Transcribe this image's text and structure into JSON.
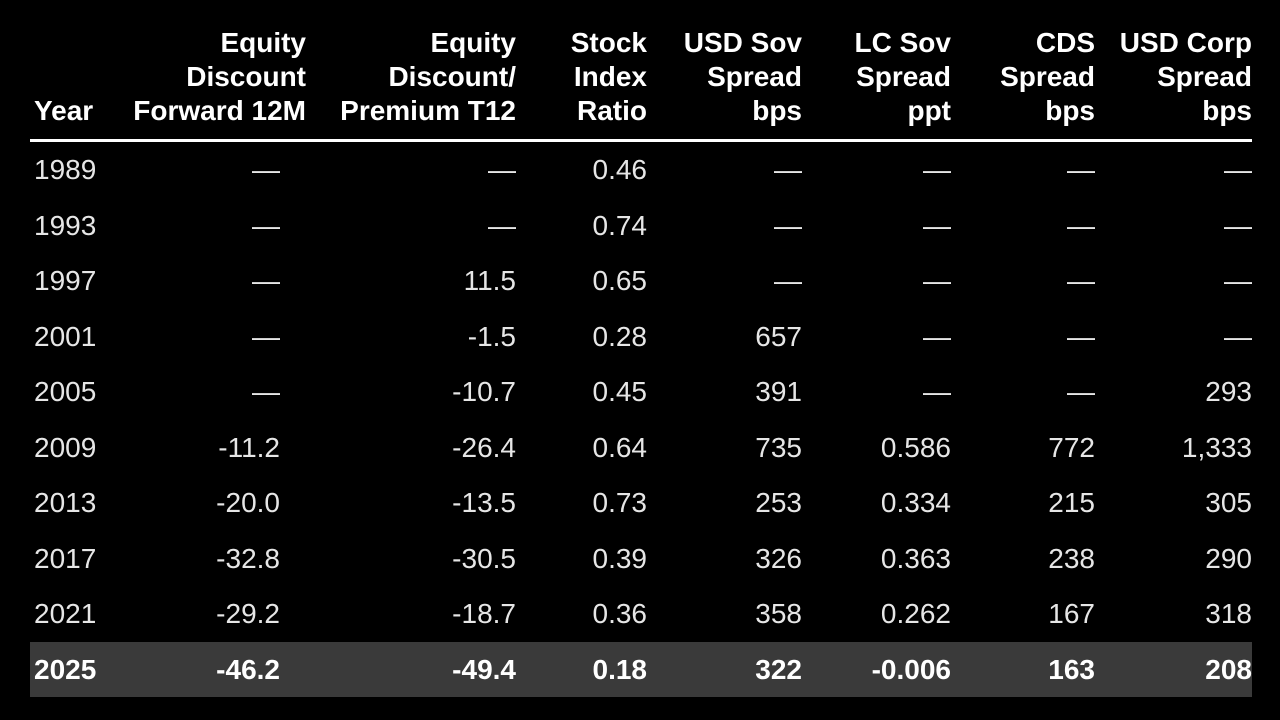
{
  "chart_data": {
    "type": "table",
    "columns": [
      {
        "key": "year",
        "label": [
          "Year"
        ]
      },
      {
        "key": "eq_fwd",
        "label": [
          "Equity",
          "Discount",
          "Forward 12M"
        ]
      },
      {
        "key": "eq_t12",
        "label": [
          "Equity",
          "Discount/",
          "Premium T12"
        ]
      },
      {
        "key": "stock",
        "label": [
          "Stock",
          "Index",
          "Ratio"
        ]
      },
      {
        "key": "usd_sov",
        "label": [
          "USD Sov",
          "Spread",
          "bps"
        ]
      },
      {
        "key": "lc_sov",
        "label": [
          "LC Sov",
          "Spread",
          "ppt"
        ]
      },
      {
        "key": "cds",
        "label": [
          "CDS",
          "Spread",
          "bps"
        ]
      },
      {
        "key": "usd_corp",
        "label": [
          "USD Corp",
          "Spread",
          "bps"
        ]
      }
    ],
    "rows": [
      [
        "1989",
        "—",
        "—",
        "0.46",
        "—",
        "—",
        "—",
        "—"
      ],
      [
        "1993",
        "—",
        "—",
        "0.74",
        "—",
        "—",
        "—",
        "—"
      ],
      [
        "1997",
        "—",
        "11.5",
        "0.65",
        "—",
        "—",
        "—",
        "—"
      ],
      [
        "2001",
        "—",
        "-1.5",
        "0.28",
        "657",
        "—",
        "—",
        "—"
      ],
      [
        "2005",
        "—",
        "-10.7",
        "0.45",
        "391",
        "—",
        "—",
        "293"
      ],
      [
        "2009",
        "-11.2",
        "-26.4",
        "0.64",
        "735",
        "0.586",
        "772",
        "1,333"
      ],
      [
        "2013",
        "-20.0",
        "-13.5",
        "0.73",
        "253",
        "0.334",
        "215",
        "305"
      ],
      [
        "2017",
        "-32.8",
        "-30.5",
        "0.39",
        "326",
        "0.363",
        "238",
        "290"
      ],
      [
        "2021",
        "-29.2",
        "-18.7",
        "0.36",
        "358",
        "0.262",
        "167",
        "318"
      ],
      [
        "2025",
        "-46.2",
        "-49.4",
        "0.18",
        "322",
        "-0.006",
        "163",
        "208"
      ]
    ],
    "highlight_row": 9,
    "colors": {
      "background": "#000000",
      "text": "#ffffff",
      "highlight_row_background": "#3a3a3a"
    }
  }
}
